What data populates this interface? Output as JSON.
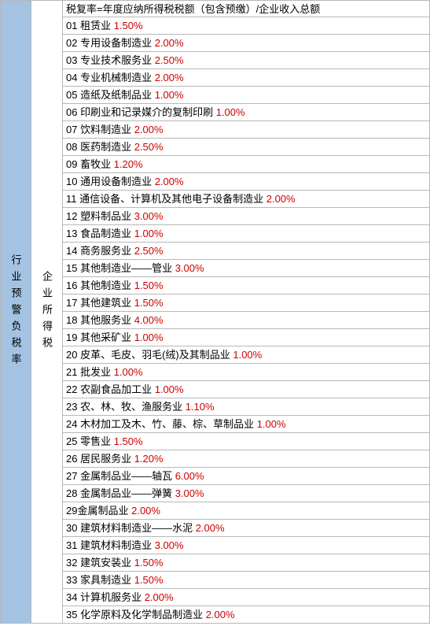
{
  "leftLabel": "行业预警负税率",
  "midLabel": "企业所得税",
  "formula": "税复率=年度应纳所得税税额（包含预缴）/企业收入总额",
  "rows": [
    {
      "num": "01",
      "name": "租赁业",
      "rate": "1.50%"
    },
    {
      "num": "02",
      "name": "专用设备制造业",
      "rate": "2.00%"
    },
    {
      "num": "03",
      "name": "专业技术服务业",
      "rate": "2.50%"
    },
    {
      "num": "04",
      "name": "专业机械制造业",
      "rate": "2.00%"
    },
    {
      "num": "05",
      "name": "造纸及纸制品业",
      "rate": "1.00%"
    },
    {
      "num": "06",
      "name": "印刷业和记录媒介的复制印刷",
      "rate": "1.00%"
    },
    {
      "num": "07",
      "name": "饮料制造业",
      "rate": "2.00%"
    },
    {
      "num": "08",
      "name": "医药制造业",
      "rate": "2.50%"
    },
    {
      "num": "09",
      "name": "畜牧业",
      "rate": "1.20%"
    },
    {
      "num": "10",
      "name": "通用设备制造业",
      "rate": "2.00%"
    },
    {
      "num": "11",
      "name": "通信设备、计算机及其他电子设备制造业",
      "rate": "2.00%"
    },
    {
      "num": "12",
      "name": "塑料制品业",
      "rate": "3.00%"
    },
    {
      "num": "13",
      "name": "食品制造业",
      "rate": "1.00%"
    },
    {
      "num": "14",
      "name": "商务服务业",
      "rate": "2.50%"
    },
    {
      "num": "15",
      "name": "其他制造业——管业",
      "rate": "3.00%"
    },
    {
      "num": "16",
      "name": "其他制造业",
      "rate": "1.50%"
    },
    {
      "num": "17",
      "name": "其他建筑业",
      "rate": "1.50%"
    },
    {
      "num": "18",
      "name": "其他服务业",
      "rate": "4.00%"
    },
    {
      "num": "19",
      "name": "其他采矿业",
      "rate": "1.00%"
    },
    {
      "num": "20",
      "name": "皮革、毛皮、羽毛(绒)及其制品业",
      "rate": "1.00%"
    },
    {
      "num": "21",
      "name": "批发业",
      "rate": "1.00%"
    },
    {
      "num": "22",
      "name": "农副食品加工业",
      "rate": "1.00%"
    },
    {
      "num": "23",
      "name": "农、林、牧、渔服务业",
      "rate": "1.10%"
    },
    {
      "num": "24",
      "name": "木材加工及木、竹、藤、棕、草制品业",
      "rate": "1.00%"
    },
    {
      "num": "25",
      "name": "零售业",
      "rate": "1.50%"
    },
    {
      "num": "26",
      "name": "居民服务业",
      "rate": "1.20%"
    },
    {
      "num": "27",
      "name": "金属制品业——轴瓦",
      "rate": "6.00%"
    },
    {
      "num": "28",
      "name": "金属制品业——弹簧",
      "rate": "3.00%"
    },
    {
      "num": "29",
      "name": "金属制品业",
      "rate": "2.00%",
      "nospace": true
    },
    {
      "num": "30",
      "name": "建筑材料制造业——水泥",
      "rate": "2.00%"
    },
    {
      "num": "31",
      "name": "建筑材料制造业",
      "rate": "3.00%"
    },
    {
      "num": "32",
      "name": "建筑安装业",
      "rate": "1.50%"
    },
    {
      "num": "33",
      "name": "家具制造业",
      "rate": "1.50%"
    },
    {
      "num": "34",
      "name": "计算机服务业",
      "rate": "2.00%"
    },
    {
      "num": "35",
      "name": "化学原料及化学制品制造业",
      "rate": "2.00%"
    }
  ],
  "colors": {
    "leftBg": "#a4c2e2",
    "border": "#b8b8b8",
    "rateColor": "#cc0000",
    "textColor": "#000000",
    "bg": "#ffffff"
  }
}
